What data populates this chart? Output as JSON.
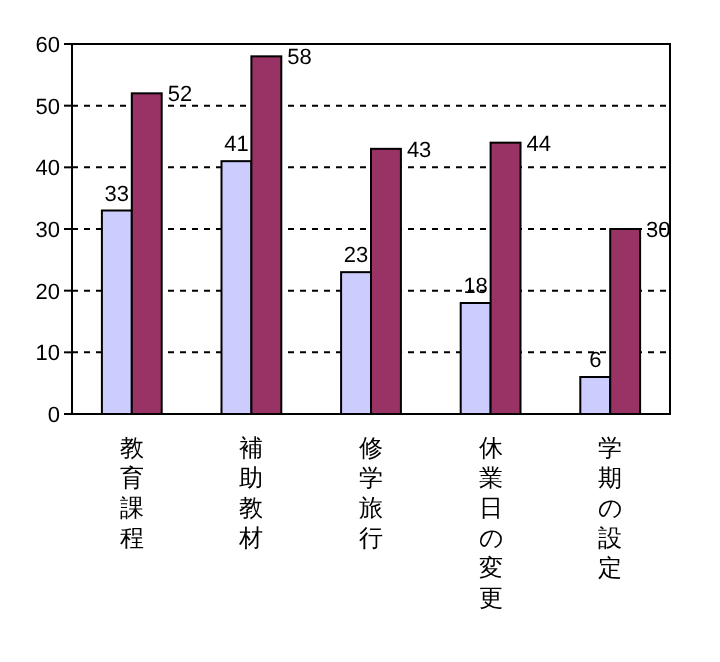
{
  "chart_data": {
    "type": "bar",
    "categories": [
      "教育課程",
      "補助教材",
      "修学旅行",
      "休業日の変更",
      "学期の設定"
    ],
    "series": [
      {
        "color": "#ccccff",
        "values": [
          33,
          41,
          23,
          18,
          6
        ]
      },
      {
        "color": "#993366",
        "values": [
          52,
          58,
          43,
          44,
          30
        ]
      }
    ],
    "ylim": [
      0,
      60
    ],
    "yticks": [
      0,
      10,
      20,
      30,
      40,
      50,
      60
    ],
    "grid": "y",
    "data_labels": true
  }
}
